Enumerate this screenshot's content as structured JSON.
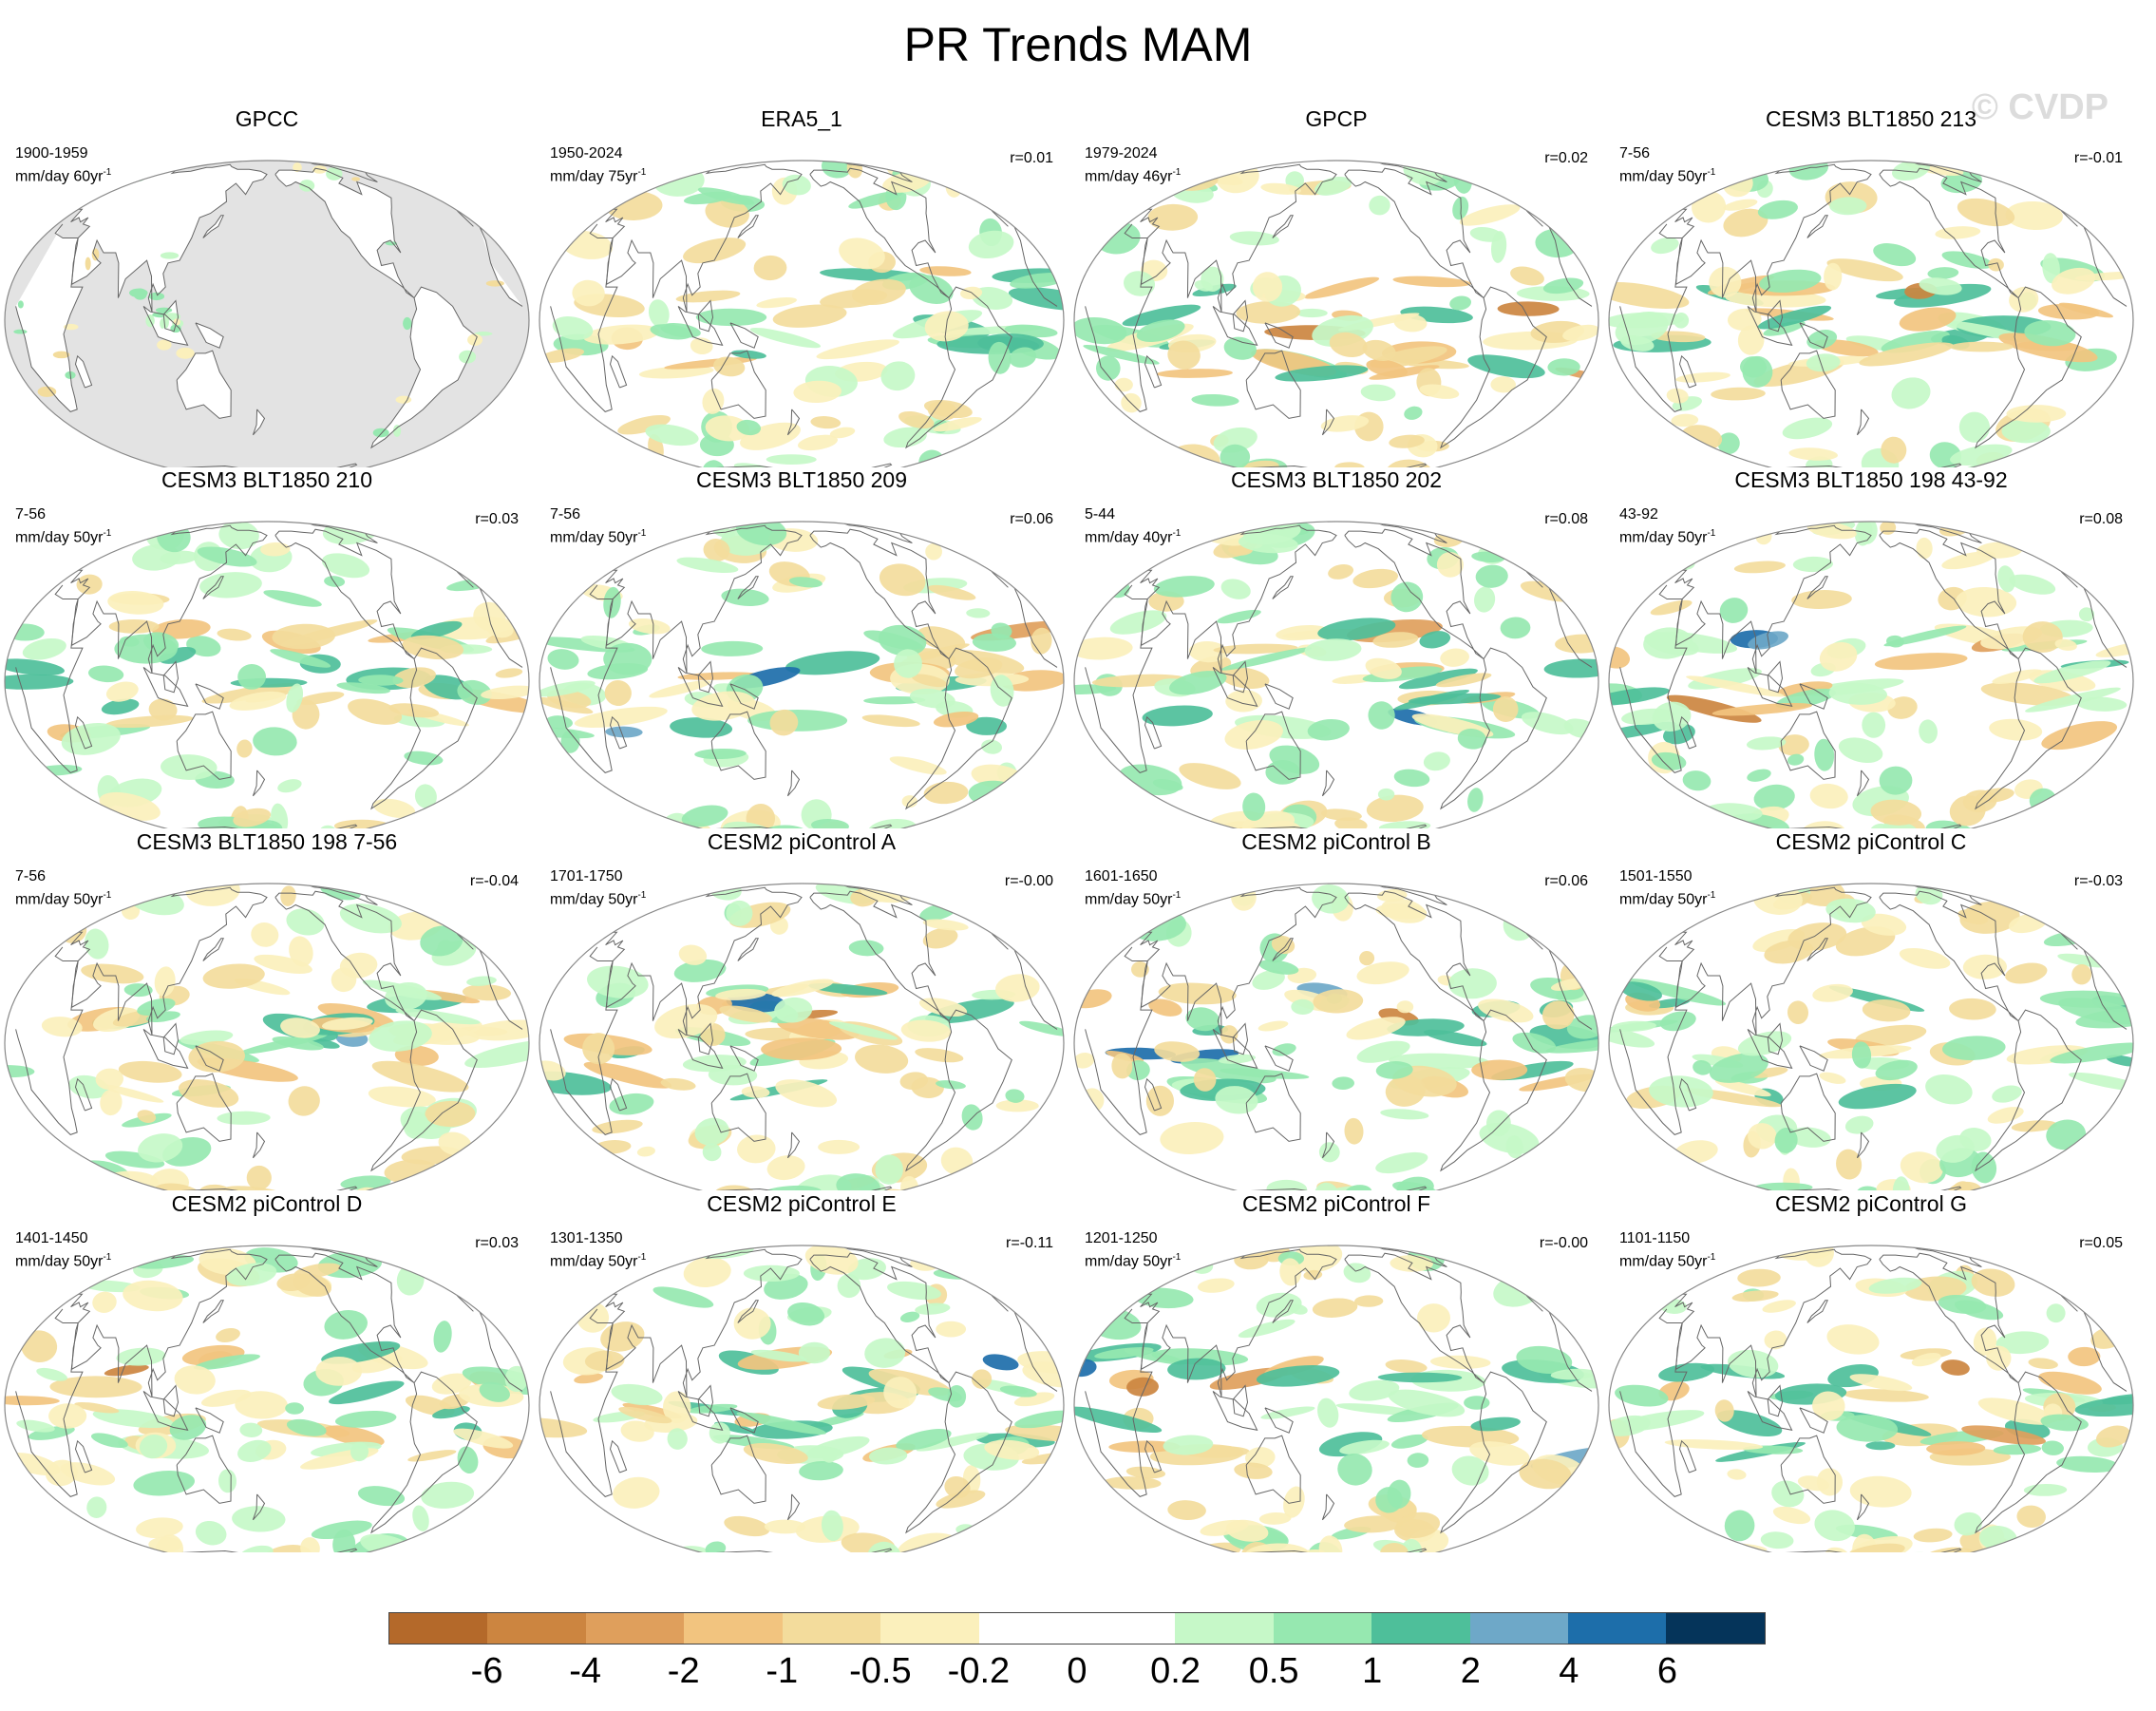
{
  "title": "PR Trends MAM",
  "watermark": "© CVDP",
  "panels": [
    {
      "title": "GPCC",
      "period": "1900-1959",
      "units": "mm/day 60yr",
      "units_exp": "-1",
      "r": "",
      "masked": true
    },
    {
      "title": "ERA5_1",
      "period": "1950-2024",
      "units": "mm/day 75yr",
      "units_exp": "-1",
      "r": "r=0.01",
      "masked": false
    },
    {
      "title": "GPCP",
      "period": "1979-2024",
      "units": "mm/day 46yr",
      "units_exp": "-1",
      "r": "r=0.02",
      "masked": false
    },
    {
      "title": "CESM3 BLT1850 213",
      "period": "7-56",
      "units": "mm/day 50yr",
      "units_exp": "-1",
      "r": "r=-0.01",
      "masked": false
    },
    {
      "title": "CESM3 BLT1850 210",
      "period": "7-56",
      "units": "mm/day 50yr",
      "units_exp": "-1",
      "r": "r=0.03",
      "masked": false
    },
    {
      "title": "CESM3 BLT1850 209",
      "period": "7-56",
      "units": "mm/day 50yr",
      "units_exp": "-1",
      "r": "r=0.06",
      "masked": false
    },
    {
      "title": "CESM3 BLT1850 202",
      "period": "5-44",
      "units": "mm/day 40yr",
      "units_exp": "-1",
      "r": "r=0.08",
      "masked": false
    },
    {
      "title": "CESM3 BLT1850 198 43-92",
      "period": "43-92",
      "units": "mm/day 50yr",
      "units_exp": "-1",
      "r": "r=0.08",
      "masked": false
    },
    {
      "title": "CESM3 BLT1850 198 7-56",
      "period": "7-56",
      "units": "mm/day 50yr",
      "units_exp": "-1",
      "r": "r=-0.04",
      "masked": false
    },
    {
      "title": "CESM2 piControl A",
      "period": "1701-1750",
      "units": "mm/day 50yr",
      "units_exp": "-1",
      "r": "r=-0.00",
      "masked": false
    },
    {
      "title": "CESM2 piControl B",
      "period": "1601-1650",
      "units": "mm/day 50yr",
      "units_exp": "-1",
      "r": "r=0.06",
      "masked": false
    },
    {
      "title": "CESM2 piControl C",
      "period": "1501-1550",
      "units": "mm/day 50yr",
      "units_exp": "-1",
      "r": "r=-0.03",
      "masked": false
    },
    {
      "title": "CESM2 piControl D",
      "period": "1401-1450",
      "units": "mm/day 50yr",
      "units_exp": "-1",
      "r": "r=0.03",
      "masked": false
    },
    {
      "title": "CESM2 piControl E",
      "period": "1301-1350",
      "units": "mm/day 50yr",
      "units_exp": "-1",
      "r": "r=-0.11",
      "masked": false
    },
    {
      "title": "CESM2 piControl F",
      "period": "1201-1250",
      "units": "mm/day 50yr",
      "units_exp": "-1",
      "r": "r=-0.00",
      "masked": false
    },
    {
      "title": "CESM2 piControl G",
      "period": "1101-1150",
      "units": "mm/day 50yr",
      "units_exp": "-1",
      "r": "r=0.05",
      "masked": false
    }
  ],
  "colorbar": {
    "labels": [
      "-6",
      "-4",
      "-2",
      "-1",
      "-0.5",
      "-0.2",
      "0",
      "0.2",
      "0.5",
      "1",
      "2",
      "4",
      "6"
    ],
    "colors": [
      "#b4692a",
      "#cc8540",
      "#df9f5c",
      "#f2c47f",
      "#f3dc9c",
      "#fbf0bc",
      "#ffffff",
      "#ffffff",
      "#c6f8c8",
      "#96e8b0",
      "#4ebf9a",
      "#6ea8c8",
      "#1d6eaa",
      "#05345a"
    ]
  },
  "style": {
    "ocean": "#ffffff",
    "mask": "#e3e3e3",
    "outline": "#666666"
  }
}
